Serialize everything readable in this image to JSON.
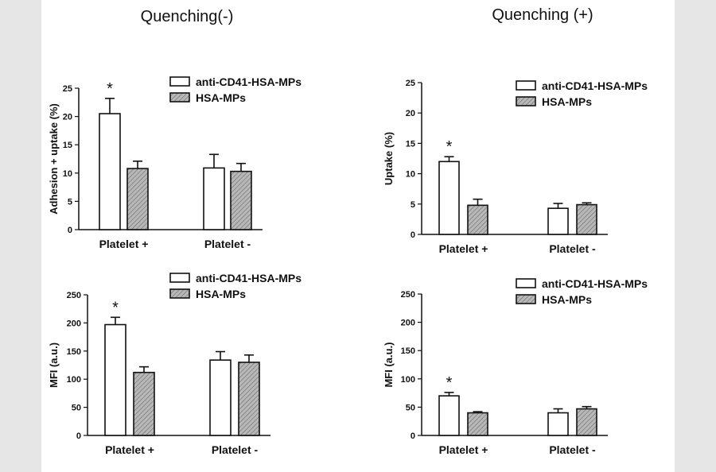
{
  "columns": {
    "left_title": "Quenching(-)",
    "right_title": "Quenching (+)"
  },
  "chart_data": [
    {
      "type": "bar",
      "panel": "top-left",
      "title": "",
      "xlabel": "",
      "ylabel": "Adhesion + uptake (%)",
      "ylim": [
        0,
        25
      ],
      "yticks": [
        "0",
        "5",
        "10",
        "15",
        "20",
        "25"
      ],
      "categories": [
        "Platelet +",
        "Platelet -"
      ],
      "series": [
        {
          "name": "anti-CD41-HSA-MPs",
          "values": [
            20.5,
            10.9
          ],
          "errors": [
            2.7,
            2.4
          ]
        },
        {
          "name": "HSA-MPs",
          "values": [
            10.8,
            10.3
          ],
          "errors": [
            1.3,
            1.4
          ]
        }
      ],
      "annotations": [
        {
          "category": 0,
          "series": 0,
          "text": "*"
        }
      ],
      "legend": "top-right"
    },
    {
      "type": "bar",
      "panel": "top-right",
      "title": "",
      "xlabel": "",
      "ylabel": "Uptake (%)",
      "ylim": [
        0,
        25
      ],
      "yticks": [
        "0",
        "5",
        "10",
        "15",
        "20",
        "25"
      ],
      "categories": [
        "Platelet +",
        "Platelet -"
      ],
      "series": [
        {
          "name": "anti-CD41-HSA-MPs",
          "values": [
            12.0,
            4.3
          ],
          "errors": [
            0.8,
            0.8
          ]
        },
        {
          "name": "HSA-MPs",
          "values": [
            4.8,
            4.9
          ],
          "errors": [
            1.0,
            0.3
          ]
        }
      ],
      "annotations": [
        {
          "category": 0,
          "series": 0,
          "text": "*"
        }
      ],
      "legend": "top-right"
    },
    {
      "type": "bar",
      "panel": "bottom-left",
      "title": "",
      "xlabel": "",
      "ylabel": "MFI (a.u.)",
      "ylim": [
        0,
        250
      ],
      "yticks": [
        "0",
        "50",
        "100",
        "150",
        "200",
        "250"
      ],
      "categories": [
        "Platelet +",
        "Platelet -"
      ],
      "series": [
        {
          "name": "anti-CD41-HSA-MPs",
          "values": [
            197,
            134
          ],
          "errors": [
            13,
            15
          ]
        },
        {
          "name": "HSA-MPs",
          "values": [
            112,
            130
          ],
          "errors": [
            10,
            13
          ]
        }
      ],
      "annotations": [
        {
          "category": 0,
          "series": 0,
          "text": "*"
        }
      ],
      "legend": "top-right"
    },
    {
      "type": "bar",
      "panel": "bottom-right",
      "title": "",
      "xlabel": "",
      "ylabel": "MFI (a.u.)",
      "ylim": [
        0,
        250
      ],
      "yticks": [
        "0",
        "50",
        "100",
        "150",
        "200",
        "250"
      ],
      "categories": [
        "Platelet +",
        "Platelet -"
      ],
      "series": [
        {
          "name": "anti-CD41-HSA-MPs",
          "values": [
            70,
            40
          ],
          "errors": [
            6,
            7
          ]
        },
        {
          "name": "HSA-MPs",
          "values": [
            40,
            47
          ],
          "errors": [
            2,
            4
          ]
        }
      ],
      "annotations": [
        {
          "category": 0,
          "series": 0,
          "text": "*"
        }
      ],
      "legend": "top-right"
    }
  ]
}
